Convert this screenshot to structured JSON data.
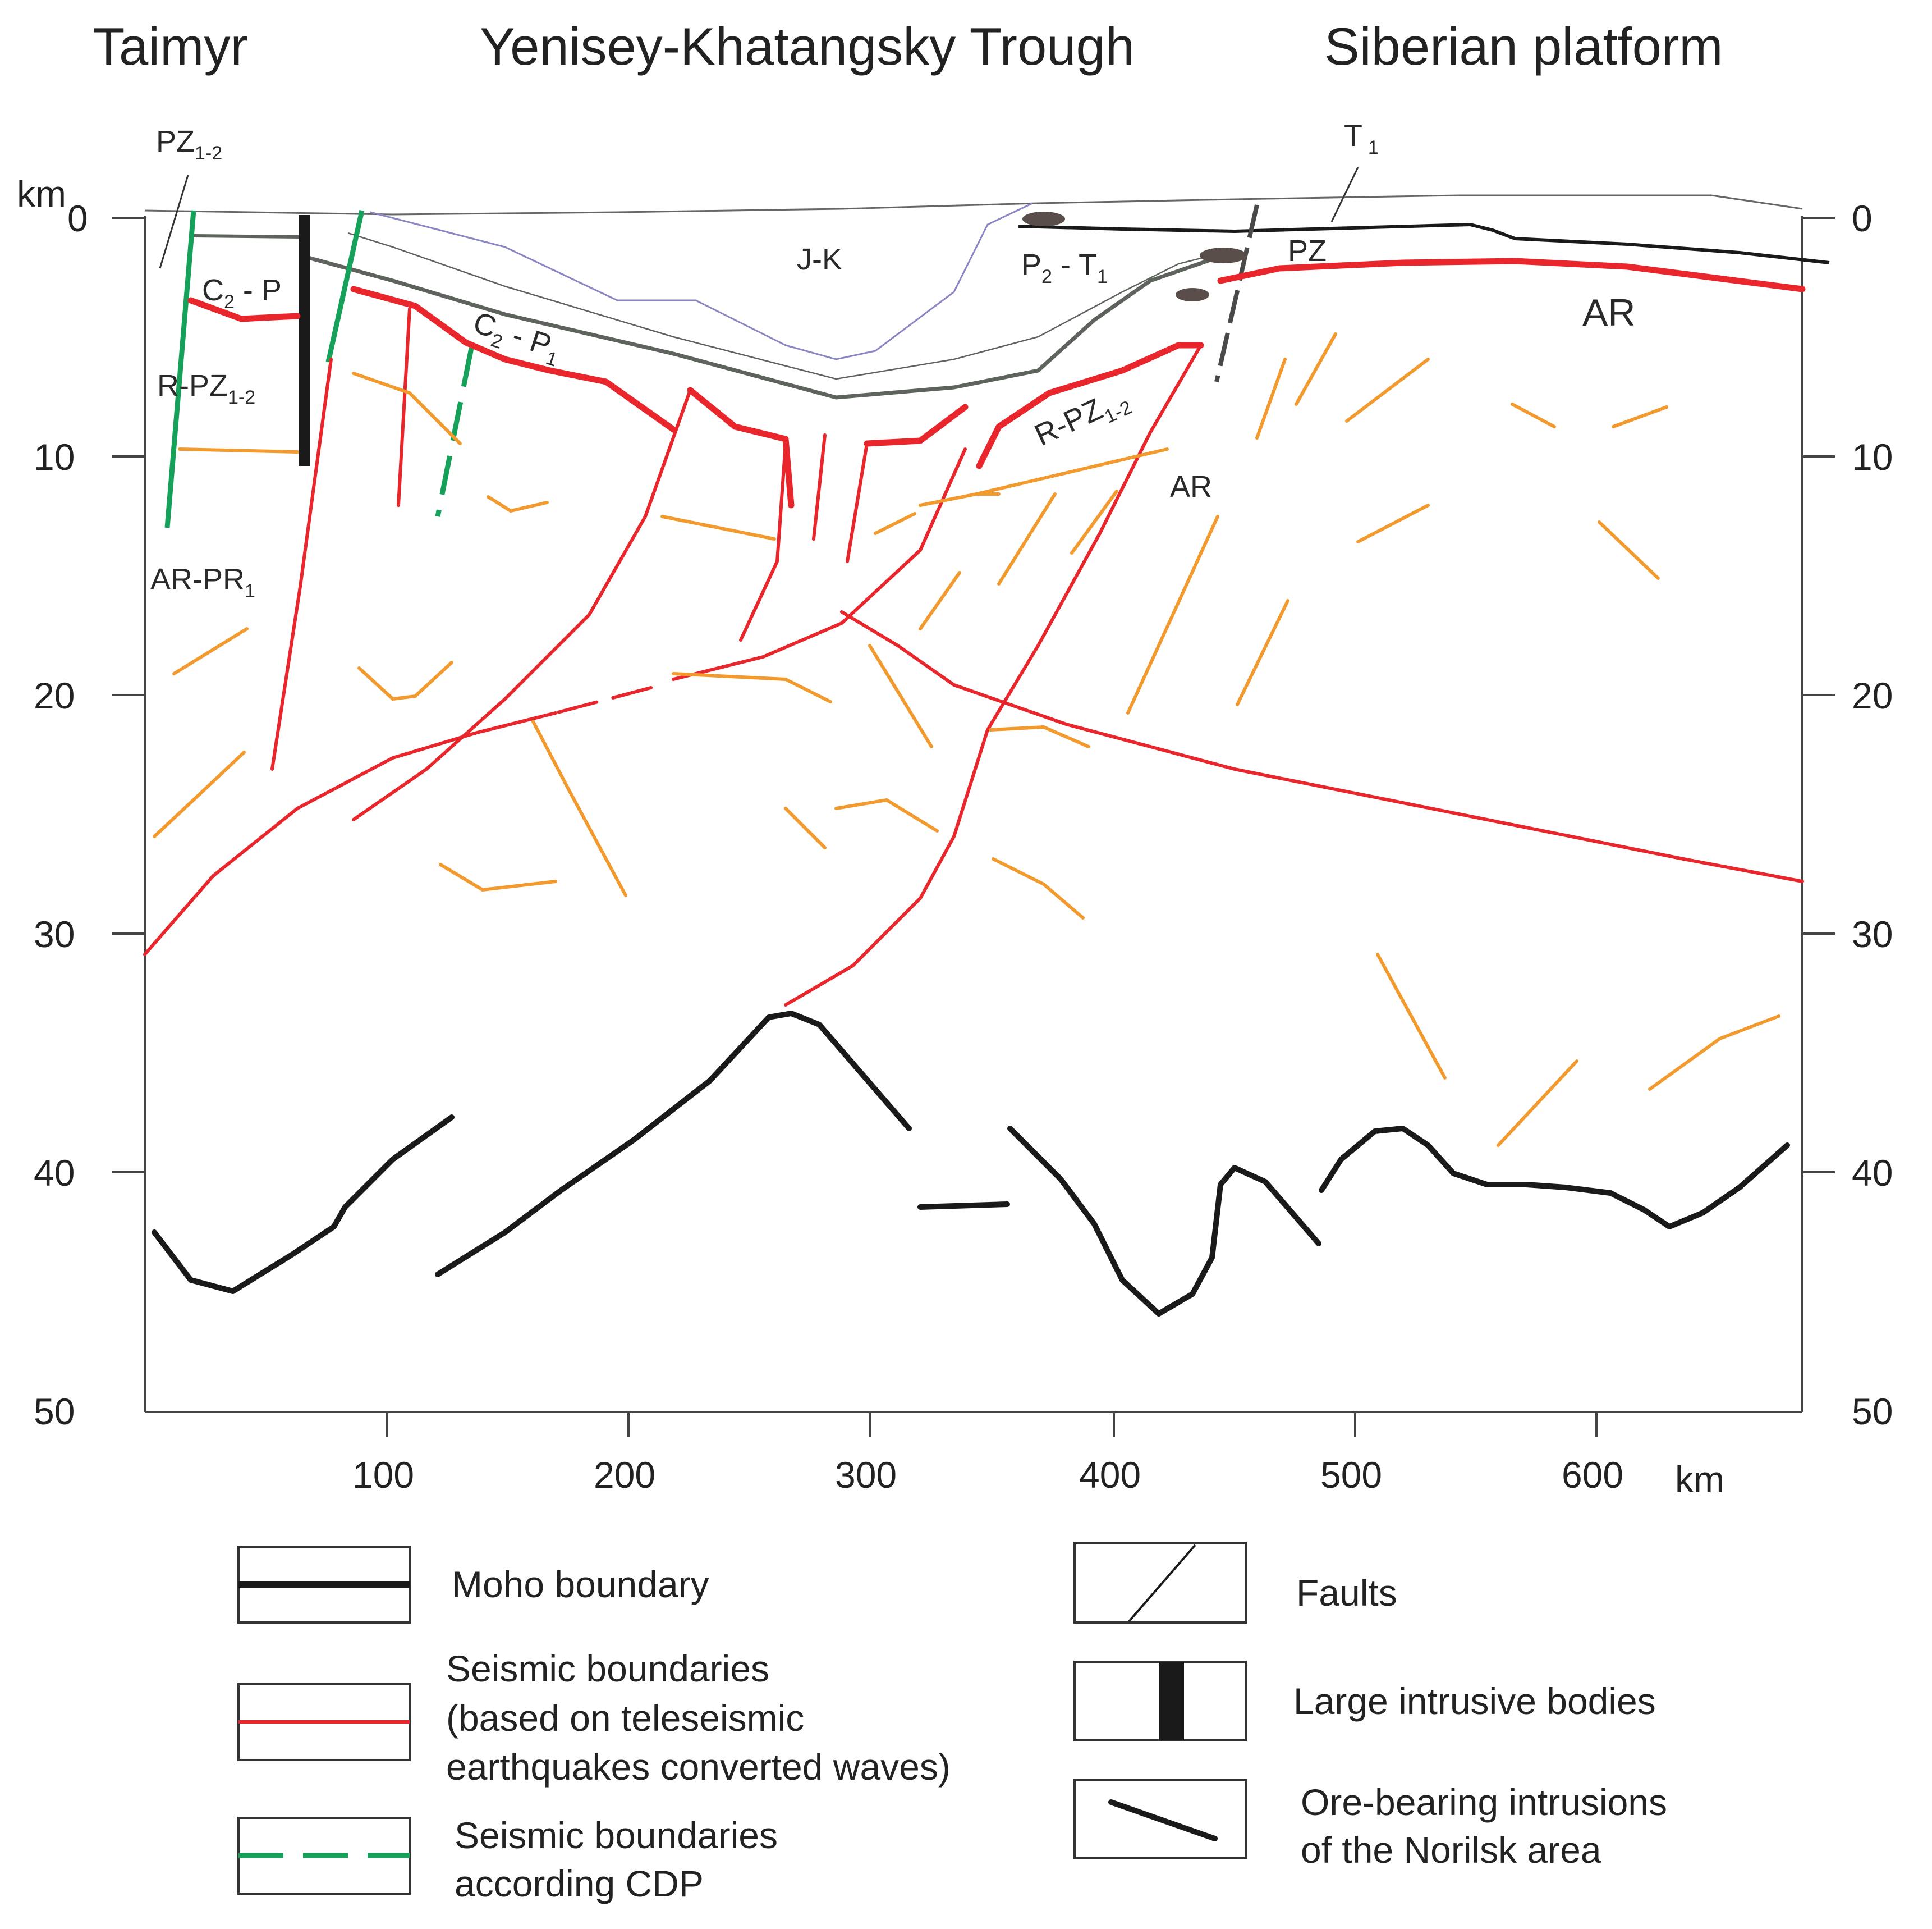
{
  "regions": {
    "left": "Taimyr",
    "center": "Yenisey-Khatangsky Trough",
    "right": "Siberian platform"
  },
  "axes": {
    "depth_unit_left": "km",
    "depth_ticks": [
      "0",
      "10",
      "20",
      "30",
      "40",
      "50"
    ],
    "distance_ticks": [
      "100",
      "200",
      "300",
      "400",
      "500",
      "600"
    ],
    "distance_unit": "km"
  },
  "labels": {
    "pz12_top": {
      "main": "PZ",
      "sub": "1-2"
    },
    "t1_top": {
      "main": "T",
      "sub": "1"
    },
    "c2p_left": {
      "main": "C",
      "sub": "2",
      "rest": " - P"
    },
    "r_pz12_left": {
      "main": "R-PZ",
      "sub": "1-2"
    },
    "ar_pr1": {
      "main": "AR-PR",
      "sub": "1"
    },
    "jk": "J-K",
    "p2t1": {
      "a": "P",
      "asub": "2",
      "b": " - T",
      "bsub": "1"
    },
    "pz_right": "PZ",
    "ar_right": "AR",
    "c2p1": {
      "a": "C",
      "asub": "2",
      "b": " - P",
      "bsub": "1"
    },
    "r_pz12_right": {
      "main": "R-PZ",
      "sub": "1-2"
    },
    "ar_mid": "AR"
  },
  "legend": {
    "moho": "Moho boundary",
    "seismic_line1": "Seismic boundaries",
    "seismic_line2": "(based on teleseismic",
    "seismic_line3": "earthquakes converted waves)",
    "cdp_line1": "Seismic boundaries",
    "cdp_line2": "according CDP",
    "faults": "Faults",
    "intrusive": "Large intrusive bodies",
    "ore_line1": "Ore-bearing intrusions",
    "ore_line2": "of the Norilsk area"
  },
  "colors": {
    "moho": "#1a1a1a",
    "seismic": "#e8262b",
    "cdp": "#16a15b",
    "minor": "#f29a2e",
    "sediment": "#5e635d",
    "basin": "#8a86c4"
  }
}
